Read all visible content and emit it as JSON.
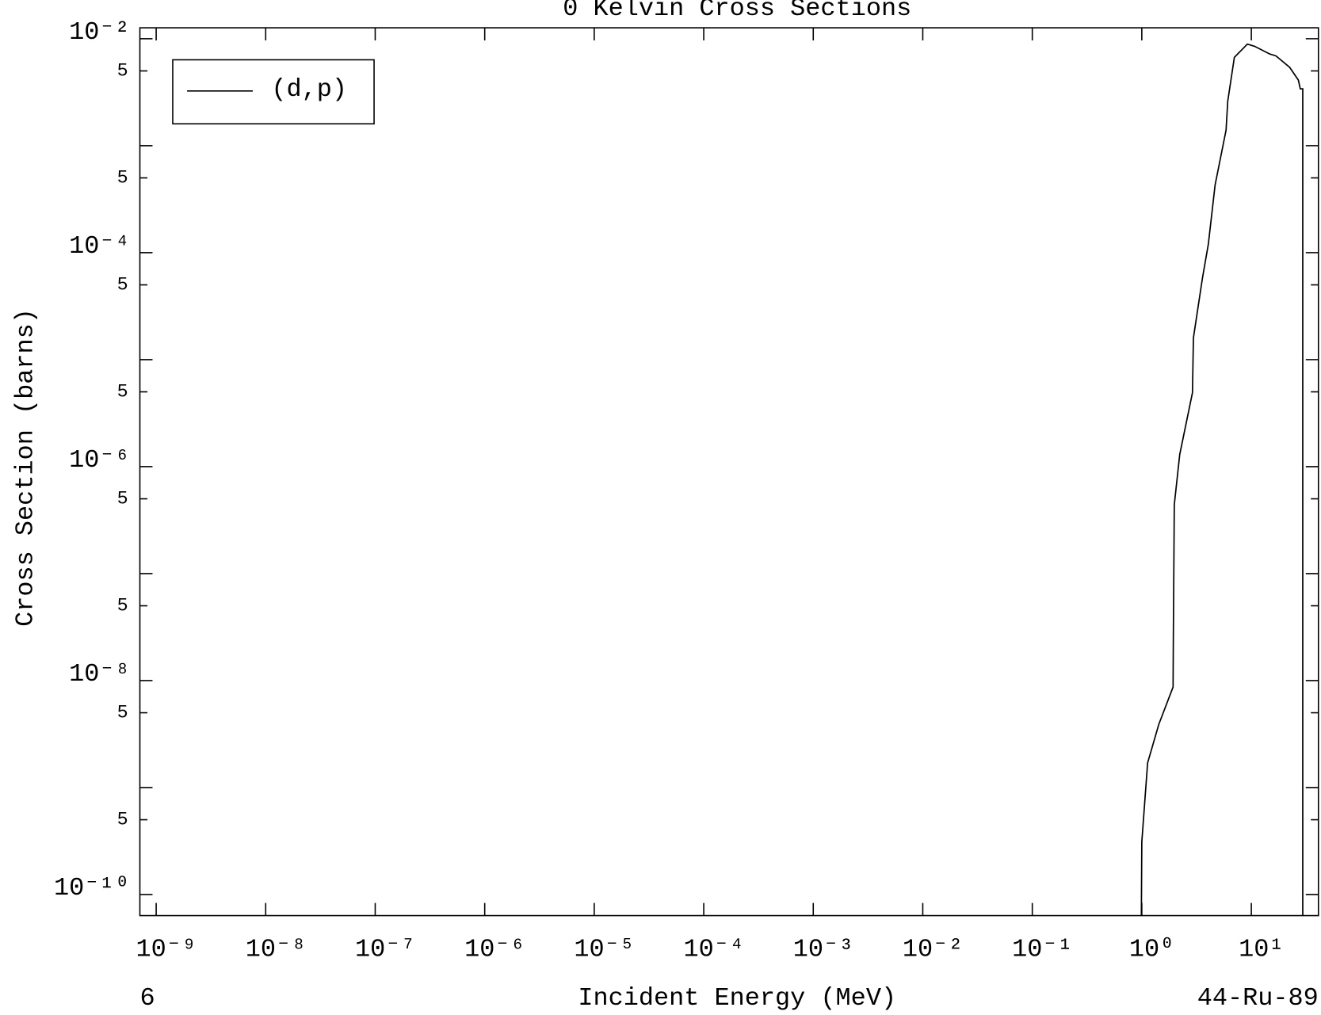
{
  "chart_data": {
    "type": "line",
    "title": "0 Kelvin Cross Sections",
    "x_label": "Incident Energy (MeV)",
    "y_label": "Cross Section (barns)",
    "footer_left": "6",
    "footer_right": "44-Ru-89",
    "x_log": true,
    "y_log": true,
    "legend_position": "upper left",
    "xlim": [
      7.1e-10,
      41
    ],
    "ylim": [
      6.35e-11,
      0.01265
    ],
    "xticks": [
      {
        "value": 1e-09,
        "label": "10⁻⁹"
      },
      {
        "value": 1e-08,
        "label": "10⁻⁸"
      },
      {
        "value": 1e-07,
        "label": "10⁻⁷"
      },
      {
        "value": 1e-06,
        "label": "10⁻⁶"
      },
      {
        "value": 1e-05,
        "label": "10⁻⁵"
      },
      {
        "value": 0.0001,
        "label": "10⁻⁴"
      },
      {
        "value": 0.001,
        "label": "10⁻³"
      },
      {
        "value": 0.01,
        "label": "10⁻²"
      },
      {
        "value": 0.1,
        "label": "10⁻¹"
      },
      {
        "value": 1,
        "label": "10⁰"
      },
      {
        "value": 10,
        "label": "10¹"
      }
    ],
    "yticks": [
      {
        "value": 0.01,
        "label": "10⁻²"
      },
      {
        "value": 0.005,
        "label": "5"
      },
      {
        "value": 0.001,
        "label": null
      },
      {
        "value": 0.0005,
        "label": "5"
      },
      {
        "value": 0.0001,
        "label": "10⁻⁴"
      },
      {
        "value": 5e-05,
        "label": "5"
      },
      {
        "value": 1e-05,
        "label": null
      },
      {
        "value": 5e-06,
        "label": "5"
      },
      {
        "value": 1e-06,
        "label": "10⁻⁶"
      },
      {
        "value": 5e-07,
        "label": "5"
      },
      {
        "value": 1e-07,
        "label": null
      },
      {
        "value": 5e-08,
        "label": "5"
      },
      {
        "value": 1e-08,
        "label": "10⁻⁸"
      },
      {
        "value": 5e-09,
        "label": "5"
      },
      {
        "value": 1e-09,
        "label": null
      },
      {
        "value": 5e-10,
        "label": "5"
      },
      {
        "value": 1e-10,
        "label": "10⁻¹⁰"
      }
    ],
    "series": [
      {
        "name": "(d,p)",
        "color": "#000000",
        "x": [
          0.98,
          1.0,
          1.13,
          1.43,
          1.93,
          1.94,
          1.98,
          2.22,
          2.9,
          2.96,
          3.58,
          4.05,
          4.67,
          5.88,
          6.09,
          7.0,
          9.2,
          10.7,
          14.7,
          16.8,
          22.4,
          26.9,
          28,
          29.5,
          29.5
        ],
        "values": [
          1e-11,
          3.1e-10,
          1.7e-09,
          3.9e-09,
          8.7e-09,
          2.4e-08,
          4.4e-07,
          1.3e-06,
          4.9e-06,
          1.6e-05,
          5.8e-05,
          0.00012,
          0.00043,
          0.0014,
          0.0026,
          0.0067,
          0.0089,
          0.0085,
          0.0072,
          0.0069,
          0.0054,
          0.0041,
          0.0034,
          0.0034,
          1e-11
        ]
      }
    ]
  }
}
